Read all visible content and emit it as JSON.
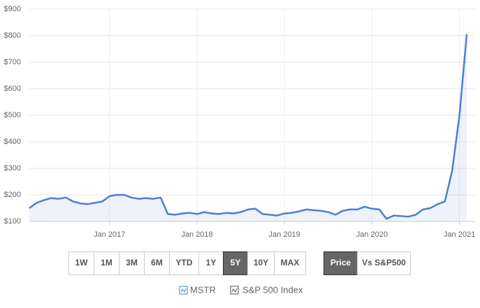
{
  "chart_data": {
    "type": "line",
    "x": [
      "2016-02",
      "2016-03",
      "2016-04",
      "2016-05",
      "2016-06",
      "2016-07",
      "2016-08",
      "2016-09",
      "2016-10",
      "2016-11",
      "2016-12",
      "2017-01",
      "2017-02",
      "2017-03",
      "2017-04",
      "2017-05",
      "2017-06",
      "2017-07",
      "2017-08",
      "2017-09",
      "2017-10",
      "2017-11",
      "2017-12",
      "2018-01",
      "2018-02",
      "2018-03",
      "2018-04",
      "2018-05",
      "2018-06",
      "2018-07",
      "2018-08",
      "2018-09",
      "2018-10",
      "2018-11",
      "2018-12",
      "2019-01",
      "2019-02",
      "2019-03",
      "2019-04",
      "2019-05",
      "2019-06",
      "2019-07",
      "2019-08",
      "2019-09",
      "2019-10",
      "2019-11",
      "2019-12",
      "2020-01",
      "2020-02",
      "2020-03",
      "2020-04",
      "2020-05",
      "2020-06",
      "2020-07",
      "2020-08",
      "2020-09",
      "2020-10",
      "2020-11",
      "2020-12",
      "2021-01",
      "2021-02"
    ],
    "series": [
      {
        "name": "MSTR",
        "color": "#4a7fd6",
        "values": [
          150,
          170,
          180,
          188,
          185,
          190,
          175,
          168,
          165,
          170,
          175,
          195,
          200,
          200,
          190,
          185,
          188,
          185,
          190,
          128,
          125,
          130,
          132,
          128,
          135,
          130,
          128,
          132,
          130,
          135,
          145,
          148,
          128,
          125,
          122,
          130,
          132,
          138,
          145,
          142,
          140,
          135,
          125,
          140,
          145,
          145,
          155,
          148,
          145,
          110,
          122,
          120,
          118,
          125,
          145,
          150,
          165,
          175,
          290,
          500,
          805
        ]
      }
    ],
    "hidden_series": [
      "S&P 500 Index"
    ],
    "xlim": [
      "2016-02",
      "2021-02"
    ],
    "xticks": [
      {
        "value": "2017-01",
        "label": "Jan 2017"
      },
      {
        "value": "2018-01",
        "label": "Jan 2018"
      },
      {
        "value": "2019-01",
        "label": "Jan 2019"
      },
      {
        "value": "2020-01",
        "label": "Jan 2020"
      },
      {
        "value": "2021-01",
        "label": "Jan 2021"
      }
    ],
    "ylim": [
      100,
      900
    ],
    "yticks": [
      {
        "value": 100,
        "label": "$100"
      },
      {
        "value": 200,
        "label": "$200"
      },
      {
        "value": 300,
        "label": "$300"
      },
      {
        "value": 400,
        "label": "$400"
      },
      {
        "value": 500,
        "label": "$500"
      },
      {
        "value": 600,
        "label": "$600"
      },
      {
        "value": 700,
        "label": "$700"
      },
      {
        "value": 800,
        "label": "$800"
      },
      {
        "value": 900,
        "label": "$900"
      }
    ],
    "grid": true
  },
  "controls": {
    "ranges": [
      "1W",
      "1M",
      "3M",
      "6M",
      "YTD",
      "1Y",
      "5Y",
      "10Y",
      "MAX"
    ],
    "selected_range": "5Y",
    "views": [
      "Price",
      "Vs S&P500"
    ],
    "selected_view": "Price"
  }
}
